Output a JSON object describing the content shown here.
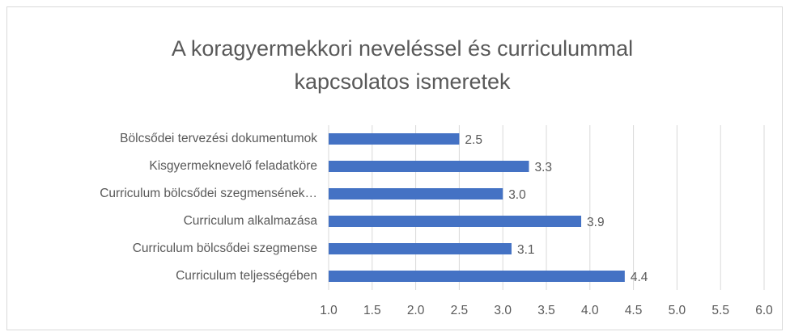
{
  "chart_data": {
    "type": "bar",
    "orientation": "horizontal",
    "title": [
      "A koragyermekkori  neveléssel és curriculummal",
      "kapcsolatos ismeretek"
    ],
    "categories": [
      "Bölcsődei tervezési dokumentumok",
      "Kisgyermeknevelő feladatköre",
      "Curriculum bölcsődei szegmensének…",
      "Curriculum alkalmazása",
      "Curriculum bölcsődei szegmense",
      "Curriculum teljességében"
    ],
    "values": [
      2.5,
      3.3,
      3,
      3.9,
      3.1,
      4.4
    ],
    "value_labels": [
      "2.5",
      "3.3",
      "3.0",
      "3.9",
      "3.1",
      "4.4"
    ],
    "color": "#4472c4",
    "xlim": [
      1,
      6
    ],
    "xticks": [
      {
        "value": 1,
        "label": "1.0"
      },
      1.5,
      {
        "value": 2,
        "label": "2.0"
      },
      2.5,
      {
        "value": 3,
        "label": "3.0"
      },
      3.5,
      {
        "value": 4,
        "label": "4.0"
      },
      4.5,
      {
        "value": 5,
        "label": "5.0"
      },
      5.5,
      {
        "value": 6,
        "label": "6.0"
      }
    ],
    "grid": true
  }
}
